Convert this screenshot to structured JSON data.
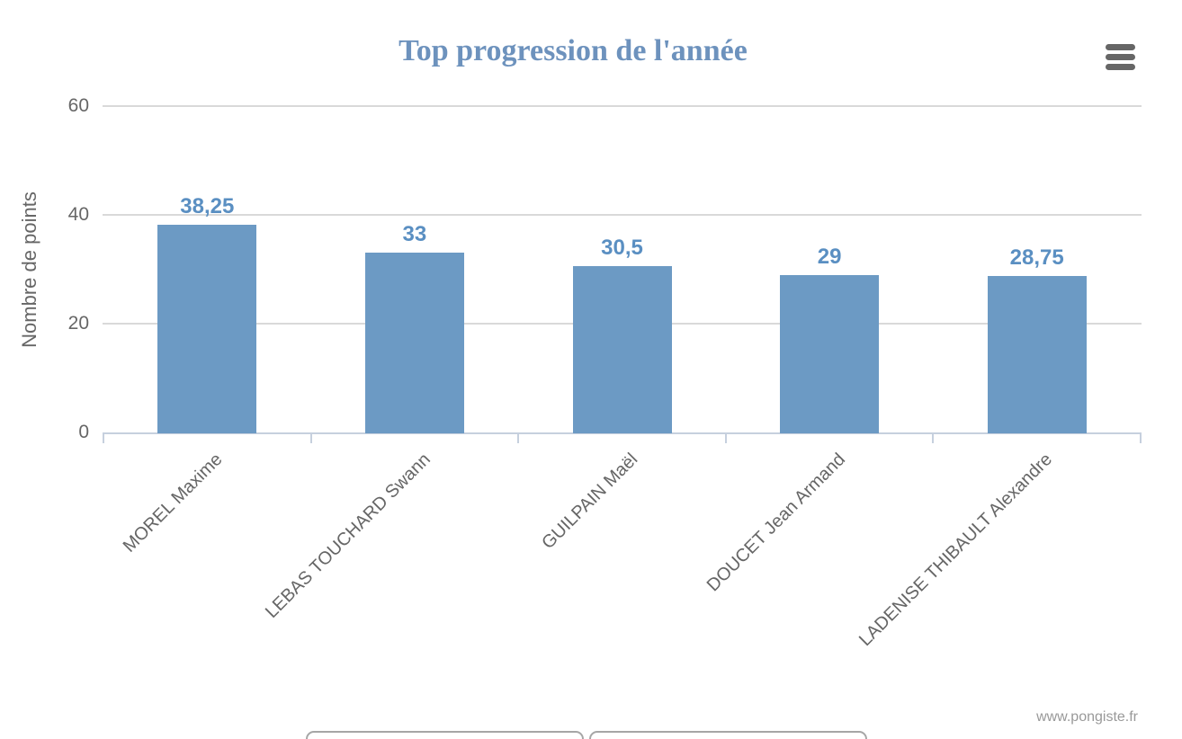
{
  "header": {
    "title": "Top progression de l'année"
  },
  "toolbar": {
    "menu_icon": "hamburger-icon"
  },
  "chart_data": {
    "type": "bar",
    "title": "Top progression de l'année",
    "categories": [
      "MOREL Maxime",
      "LEBAS TOUCHARD Swann",
      "GUILPAIN Maël",
      "DOUCET Jean Armand",
      "LADENISE THIBAULT Alexandre"
    ],
    "values": [
      38.25,
      33,
      30.5,
      29,
      28.75
    ],
    "value_labels": [
      "38,25",
      "33",
      "30,5",
      "29",
      "28,75"
    ],
    "xlabel": "",
    "ylabel": "Nombre de points",
    "ylim": [
      0,
      60
    ],
    "yticks": [
      0,
      20,
      40,
      60
    ],
    "ytick_labels": [
      "0",
      "20",
      "40",
      "60"
    ],
    "grid": true,
    "legend": false,
    "xlabel_rotation": -45
  },
  "colors": {
    "bar": "#6c9ac4",
    "data_label": "#5a8fc2",
    "title": "#6d92bd",
    "axis_text": "#666666",
    "grid_line": "#d9d9d9",
    "axis_line": "#c6d0de",
    "credits": "#999999",
    "menu_icon": "#666666"
  },
  "credits": {
    "label": "www.pongiste.fr"
  }
}
